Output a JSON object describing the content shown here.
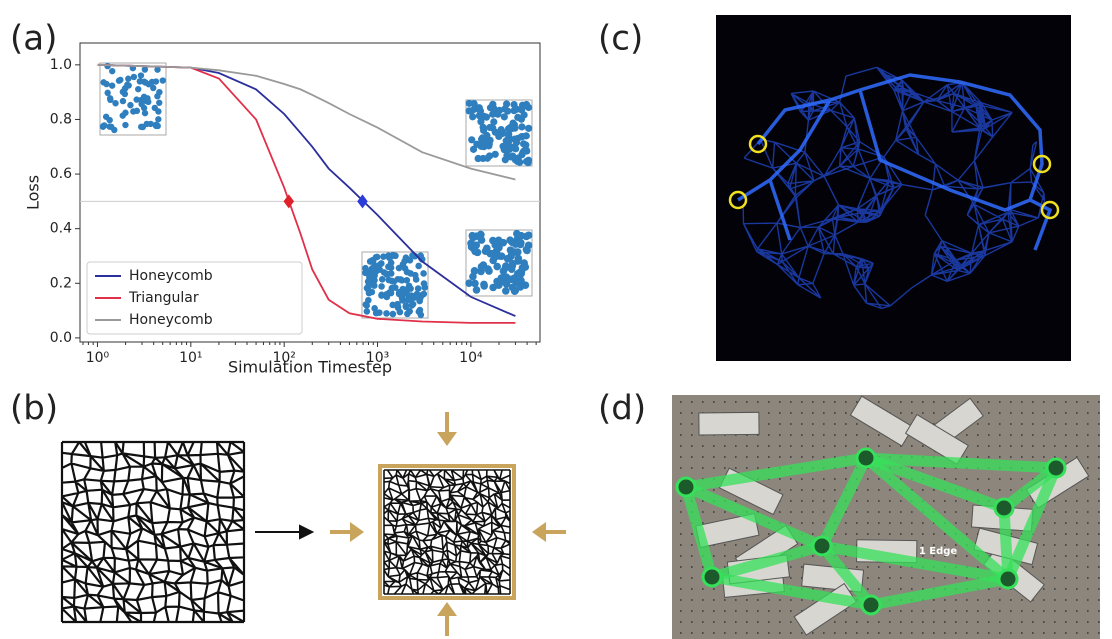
{
  "panels": {
    "a": "(a)",
    "b": "(b)",
    "c": "(c)",
    "d": "(d)"
  },
  "photo_label": "1 Edge",
  "chart_data": {
    "type": "line",
    "x_label": "Simulation Timestep",
    "y_label": "Loss",
    "x_scale": "log",
    "x": [
      1,
      10,
      20,
      50,
      100,
      150,
      200,
      300,
      500,
      1000,
      3000,
      10000,
      30000
    ],
    "series": [
      {
        "name": "Honeycomb",
        "color": "#2b2f9c",
        "values": [
          1.0,
          0.99,
          0.97,
          0.91,
          0.82,
          0.75,
          0.7,
          0.62,
          0.55,
          0.45,
          0.28,
          0.15,
          0.08
        ]
      },
      {
        "name": "Triangular",
        "color": "#e0304a",
        "values": [
          1.0,
          0.99,
          0.95,
          0.8,
          0.55,
          0.38,
          0.25,
          0.14,
          0.09,
          0.07,
          0.06,
          0.055,
          0.055
        ]
      },
      {
        "name": "Honeycomb",
        "color": "#9a9a9a",
        "values": [
          1.0,
          0.99,
          0.98,
          0.96,
          0.93,
          0.91,
          0.89,
          0.86,
          0.82,
          0.77,
          0.68,
          0.62,
          0.58
        ]
      }
    ],
    "reference_line": 0.5,
    "markers": [
      {
        "x": 112,
        "y": 0.5,
        "color": "#e0202a"
      },
      {
        "x": 690,
        "y": 0.5,
        "color": "#2a3bd8"
      }
    ],
    "xlim": [
      0.65,
      55000
    ],
    "ylim": [
      -0.015,
      1.08
    ],
    "xticks": [
      {
        "value": 1,
        "label": "10⁰"
      },
      {
        "value": 10,
        "label": "10¹"
      },
      {
        "value": 100,
        "label": "10²"
      },
      {
        "value": 1000,
        "label": "10³"
      },
      {
        "value": 10000,
        "label": "10⁴"
      }
    ],
    "yticks": [
      {
        "value": 0,
        "label": "0.0"
      },
      {
        "value": 0.2,
        "label": "0.2"
      },
      {
        "value": 0.4,
        "label": "0.4"
      },
      {
        "value": 0.6,
        "label": "0.6"
      },
      {
        "value": 0.8,
        "label": "0.8"
      },
      {
        "value": 1.0,
        "label": "1.0"
      }
    ],
    "legend": "lower left"
  }
}
